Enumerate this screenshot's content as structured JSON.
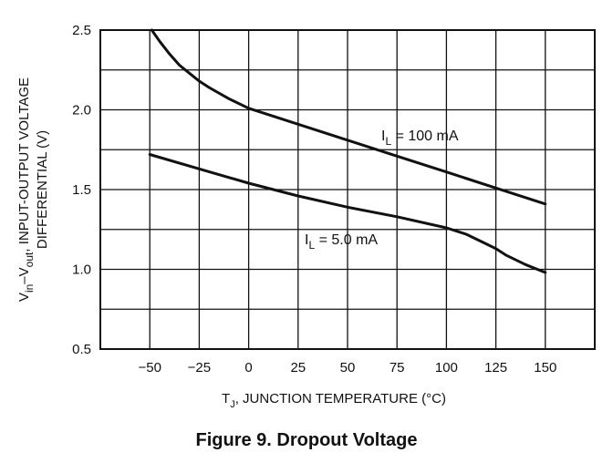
{
  "figure_caption": "Figure 9. Dropout Voltage",
  "chart_data": {
    "type": "line",
    "xlabel_main": "T",
    "xlabel_sub": "J",
    "xlabel_rest": ", JUNCTION TEMPERATURE (°C)",
    "ylabel_line1": "V",
    "ylabel_line1_sub1": "in",
    "ylabel_line1_mid": "–V",
    "ylabel_line1_sub2": "out",
    "ylabel_line1_rest": ", INPUT-OUTPUT VOLTAGE",
    "ylabel_line2": "DIFFERENTIAL (V)",
    "xlim": [
      -75,
      175
    ],
    "ylim": [
      0.5,
      2.5
    ],
    "x_ticks": [
      -50,
      -25,
      0,
      25,
      50,
      75,
      100,
      125,
      150
    ],
    "x_tick_labels": [
      "−50",
      "−25",
      "0",
      "25",
      "50",
      "75",
      "100",
      "125",
      "150"
    ],
    "y_ticks": [
      0.5,
      1.0,
      1.5,
      2.0,
      2.5
    ],
    "y_tick_labels": [
      "0.5",
      "1.0",
      "1.5",
      "2.0",
      "2.5"
    ],
    "grid": true,
    "series": [
      {
        "name": "IL = 100 mA",
        "label_main": "I",
        "label_sub": "L",
        "label_rest": " = 100 mA",
        "x": [
          -49,
          -45,
          -40,
          -35,
          -30,
          -25,
          -20,
          -10,
          0,
          10,
          25,
          50,
          75,
          100,
          125,
          150
        ],
        "y": [
          2.5,
          2.43,
          2.35,
          2.28,
          2.23,
          2.18,
          2.14,
          2.07,
          2.01,
          1.97,
          1.91,
          1.81,
          1.71,
          1.61,
          1.51,
          1.41
        ]
      },
      {
        "name": "IL = 5.0 mA",
        "label_main": "I",
        "label_sub": "L",
        "label_rest": " = 5.0 mA",
        "x": [
          -50,
          -25,
          0,
          25,
          50,
          75,
          100,
          110,
          120,
          125,
          130,
          140,
          150
        ],
        "y": [
          1.72,
          1.63,
          1.54,
          1.46,
          1.39,
          1.33,
          1.26,
          1.22,
          1.16,
          1.13,
          1.09,
          1.03,
          0.98
        ]
      }
    ]
  }
}
